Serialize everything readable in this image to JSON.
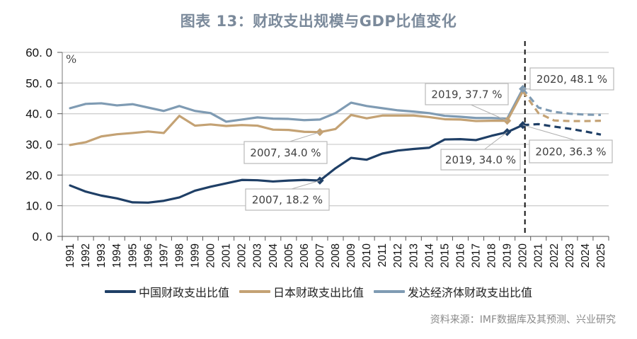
{
  "title": "图表 13：财政支出规模与GDP比值变化",
  "source": "资料来源：IMF数据库及其预测、兴业研究",
  "chart_data": {
    "type": "line",
    "title": "图表 13：财政支出规模与GDP比值变化",
    "xlabel": "",
    "ylabel": "%",
    "ylim": [
      0,
      60
    ],
    "yticks": [
      "0. 0",
      "10. 0",
      "20. 0",
      "30. 0",
      "40. 0",
      "50. 0",
      "60. 0"
    ],
    "ytick_values": [
      0,
      10,
      20,
      30,
      40,
      50,
      60
    ],
    "grid": true,
    "legend_position": "bottom",
    "x": [
      "1991",
      "1992",
      "1993",
      "1994",
      "1995",
      "1996",
      "1997",
      "1998",
      "1999",
      "2000",
      "2001",
      "2002",
      "2003",
      "2004",
      "2005",
      "2006",
      "2007",
      "2008",
      "2009",
      "2010",
      "2011",
      "2012",
      "2013",
      "2014",
      "2015",
      "2016",
      "2017",
      "2018",
      "2019",
      "2020",
      "2021",
      "2022",
      "2023",
      "2024",
      "2025"
    ],
    "forecast_start": "2020",
    "divider_at": "2020",
    "series": [
      {
        "name": "中国财政支出比值",
        "color": "#1f3f66",
        "values": [
          16.6,
          14.6,
          13.3,
          12.4,
          11.1,
          11.0,
          11.6,
          12.7,
          14.9,
          16.2,
          17.3,
          18.4,
          18.3,
          17.9,
          18.2,
          18.4,
          18.2,
          22.2,
          25.6,
          25.0,
          27.0,
          28.0,
          28.5,
          28.9,
          31.6,
          31.7,
          31.4,
          32.8,
          34.0,
          36.3,
          36.6,
          35.8,
          35.1,
          34.2,
          33.2
        ]
      },
      {
        "name": "日本财政支出比值",
        "color": "#c4a274",
        "values": [
          29.8,
          30.7,
          32.6,
          33.3,
          33.7,
          34.2,
          33.7,
          39.3,
          36.1,
          36.5,
          36.0,
          36.3,
          36.1,
          34.8,
          34.7,
          34.1,
          34.0,
          35.0,
          39.6,
          38.5,
          39.4,
          39.4,
          39.4,
          38.9,
          38.2,
          38.1,
          37.6,
          37.7,
          37.7,
          47.3,
          40.2,
          37.8,
          37.6,
          37.6,
          37.7
        ]
      },
      {
        "name": "发达经济体财政支出比值",
        "color": "#7f9bb3",
        "values": [
          41.8,
          43.2,
          43.4,
          42.7,
          43.1,
          42.0,
          40.9,
          42.5,
          40.9,
          40.2,
          37.4,
          38.1,
          38.8,
          38.4,
          38.3,
          37.9,
          38.1,
          40.2,
          43.6,
          42.5,
          41.8,
          41.1,
          40.7,
          40.2,
          39.3,
          39.0,
          38.6,
          38.6,
          38.4,
          48.1,
          42.0,
          40.6,
          40.0,
          39.7,
          39.6
        ]
      }
    ],
    "annotations": [
      {
        "text": "2007, 34.0 %",
        "series": 1,
        "x": "2007",
        "value": 34.0
      },
      {
        "text": "2007, 18.2 %",
        "series": 0,
        "x": "2007",
        "value": 18.2
      },
      {
        "text": "2019, 37.7 %",
        "series": 1,
        "x": "2019",
        "value": 37.7
      },
      {
        "text": "2019, 34.0 %",
        "series": 0,
        "x": "2019",
        "value": 34.0
      },
      {
        "text": "2020, 48.1 %",
        "series": 2,
        "x": "2020",
        "value": 48.1
      },
      {
        "text": "2020, 36.3 %",
        "series": 0,
        "x": "2020",
        "value": 36.3
      }
    ]
  },
  "legend": [
    {
      "label": "中国财政支出比值",
      "color": "#1f3f66"
    },
    {
      "label": "日本财政支出比值",
      "color": "#c4a274"
    },
    {
      "label": "发达经济体财政支出比值",
      "color": "#7f9bb3"
    }
  ]
}
